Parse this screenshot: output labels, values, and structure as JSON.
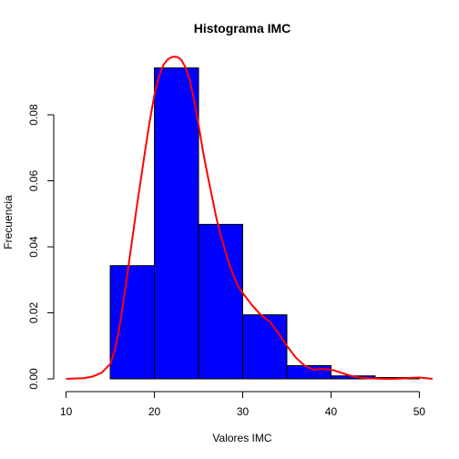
{
  "chart_data": {
    "type": "bar",
    "title": "Histograma IMC",
    "xlabel": "Valores IMC",
    "ylabel": "Frecuencia",
    "xlim": [
      8.6,
      51.4
    ],
    "ylim": [
      0,
      0.0985
    ],
    "x_ticks": [
      10,
      20,
      30,
      40,
      50
    ],
    "y_ticks": [
      0.0,
      0.02,
      0.04,
      0.06,
      0.08
    ],
    "y_tick_labels": [
      "0.00",
      "0.02",
      "0.04",
      "0.06",
      "0.08"
    ],
    "bin_edges": [
      10,
      15,
      20,
      25,
      30,
      35,
      40,
      45,
      50
    ],
    "values": [
      0.0,
      0.0343,
      0.0942,
      0.0468,
      0.0194,
      0.004,
      0.0009,
      0.0004
    ],
    "bar_color": "#0000ff",
    "density_curve": {
      "color": "#ff0000",
      "x": [
        10,
        12,
        13,
        14,
        15,
        15.5,
        16,
        16.5,
        17,
        17.5,
        18,
        18.5,
        19,
        19.5,
        20,
        20.5,
        21,
        21.5,
        22,
        22.3,
        22.6,
        23,
        23.5,
        24,
        24.5,
        25,
        25.5,
        26,
        26.5,
        27,
        27.5,
        28,
        28.5,
        29,
        29.5,
        30,
        31,
        32,
        33,
        34,
        35,
        36,
        37,
        38,
        39,
        40,
        41,
        42,
        43,
        44,
        45,
        46,
        47,
        48,
        49,
        50,
        51.5
      ],
      "y": [
        0.0,
        0.0002,
        0.0007,
        0.0018,
        0.0045,
        0.0085,
        0.015,
        0.0235,
        0.033,
        0.0425,
        0.052,
        0.061,
        0.07,
        0.0785,
        0.086,
        0.0915,
        0.095,
        0.0968,
        0.0975,
        0.0976,
        0.0975,
        0.0968,
        0.0945,
        0.0905,
        0.0845,
        0.077,
        0.069,
        0.062,
        0.0555,
        0.049,
        0.0435,
        0.039,
        0.0345,
        0.031,
        0.028,
        0.026,
        0.0225,
        0.0195,
        0.0175,
        0.014,
        0.01,
        0.0065,
        0.004,
        0.0028,
        0.003,
        0.0028,
        0.002,
        0.0011,
        0.0005,
        0.0002,
        0.0001,
        0.0,
        0.0,
        0.0001,
        0.0003,
        0.0004,
        0.0
      ]
    }
  }
}
